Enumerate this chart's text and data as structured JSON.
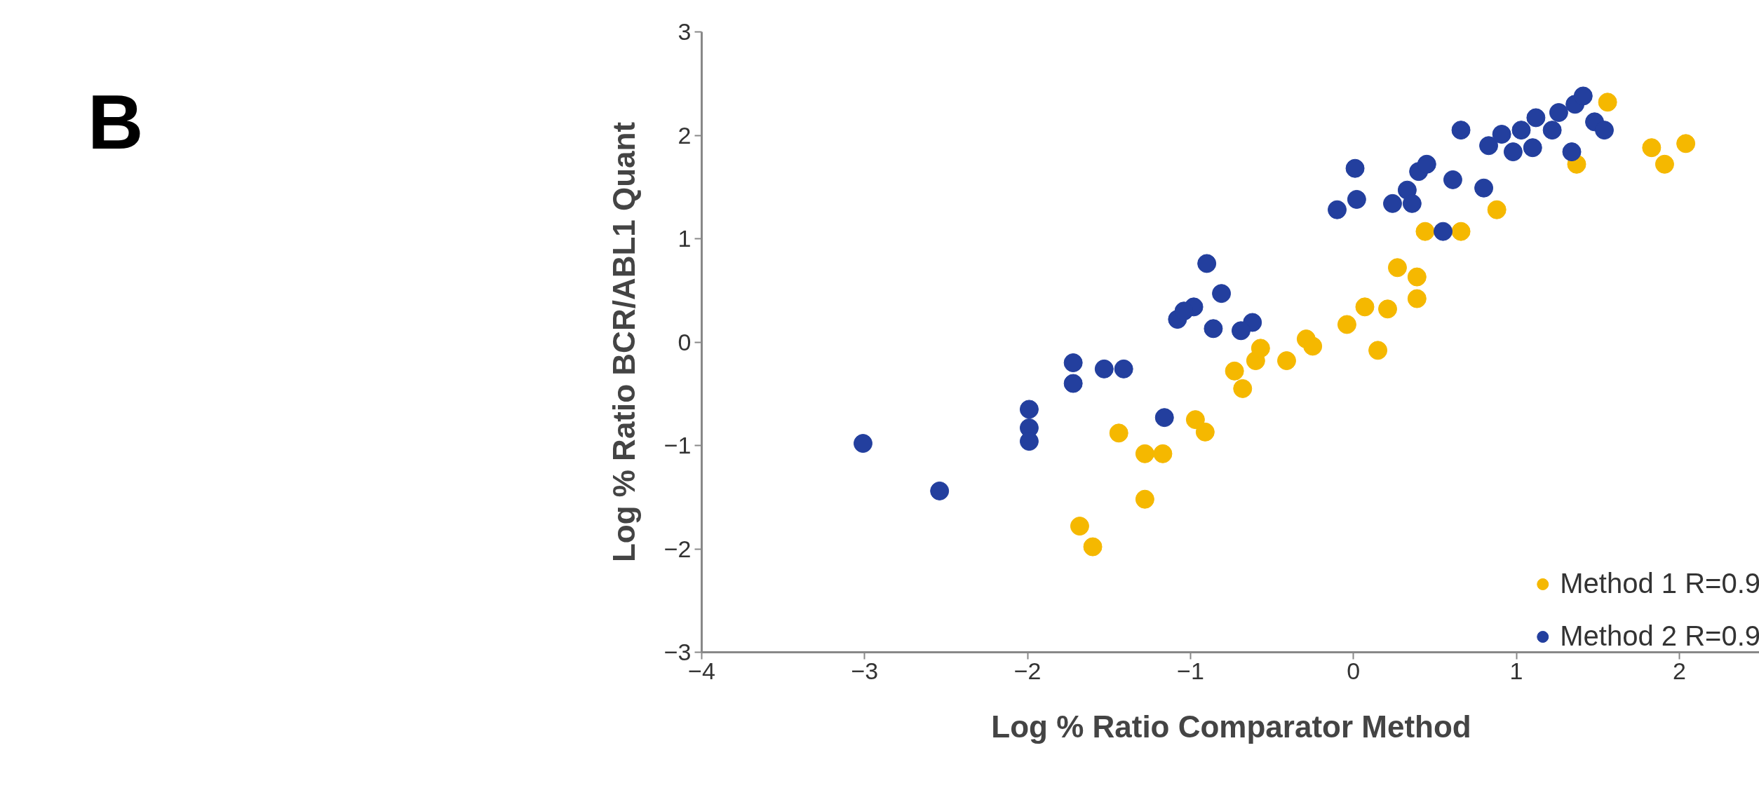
{
  "chart_data": {
    "type": "scatter",
    "xlabel": "Log % Ratio Comparator Method",
    "ylabel": "Log % Ratio BCR/ABL1 Quant",
    "annotations": [
      "B"
    ],
    "xlim": [
      -4,
      2.5
    ],
    "ylim": [
      -3,
      3
    ],
    "xticks": [
      -4,
      -3,
      -2,
      -1,
      0,
      1,
      2
    ],
    "yticks": [
      -3,
      -2,
      -1,
      0,
      1,
      2,
      3
    ],
    "grid": false,
    "legend": "bottom right",
    "marker": "circle",
    "series": [
      {
        "name": "Method 1 R=0.9",
        "color": "#f5b800",
        "x": [
          -1.44,
          -1.28,
          -1.17,
          -1.28,
          -1.68,
          -1.6,
          -0.97,
          -0.91,
          -0.73,
          -0.68,
          -0.6,
          -0.57,
          -0.41,
          -0.29,
          -0.25,
          -0.04,
          0.07,
          0.21,
          0.15,
          0.27,
          0.39,
          0.39,
          0.44,
          0.66,
          0.88,
          1.37,
          1.56,
          1.83,
          1.91,
          2.04
        ],
        "values": [
          -0.88,
          -1.08,
          -1.08,
          -1.52,
          -1.78,
          -1.98,
          -0.75,
          -0.87,
          -0.28,
          -0.45,
          -0.18,
          -0.06,
          -0.18,
          0.03,
          -0.04,
          0.17,
          0.34,
          0.32,
          -0.08,
          0.72,
          0.63,
          0.42,
          1.07,
          1.07,
          1.28,
          1.72,
          2.32,
          1.88,
          1.72,
          1.92
        ]
      },
      {
        "name": "Method 2 R=0.9",
        "color": "#233f9e",
        "x": [
          -3.01,
          -2.54,
          -1.99,
          -1.99,
          -1.99,
          -1.72,
          -1.72,
          -1.53,
          -1.41,
          -1.16,
          -0.9,
          -0.81,
          -1.08,
          -0.98,
          -0.86,
          -0.62,
          -0.69,
          -1.04,
          0.55,
          0.01,
          -0.1,
          0.02,
          0.24,
          0.33,
          0.4,
          0.36,
          0.45,
          0.61,
          0.8,
          0.66,
          0.83,
          0.91,
          1.03,
          1.1,
          1.12,
          1.22,
          1.26,
          1.36,
          1.41,
          1.48,
          1.54,
          1.34,
          0.98
        ],
        "values": [
          -0.98,
          -1.44,
          -0.65,
          -0.83,
          -0.96,
          -0.2,
          -0.4,
          -0.26,
          -0.26,
          -0.73,
          0.76,
          0.47,
          0.22,
          0.34,
          0.13,
          0.19,
          0.11,
          0.3,
          1.07,
          1.68,
          1.28,
          1.38,
          1.34,
          1.47,
          1.65,
          1.34,
          1.72,
          1.57,
          1.49,
          2.05,
          1.9,
          2.01,
          2.05,
          1.88,
          2.17,
          2.05,
          2.22,
          2.3,
          2.38,
          2.13,
          2.05,
          1.84,
          1.84
        ]
      }
    ]
  }
}
